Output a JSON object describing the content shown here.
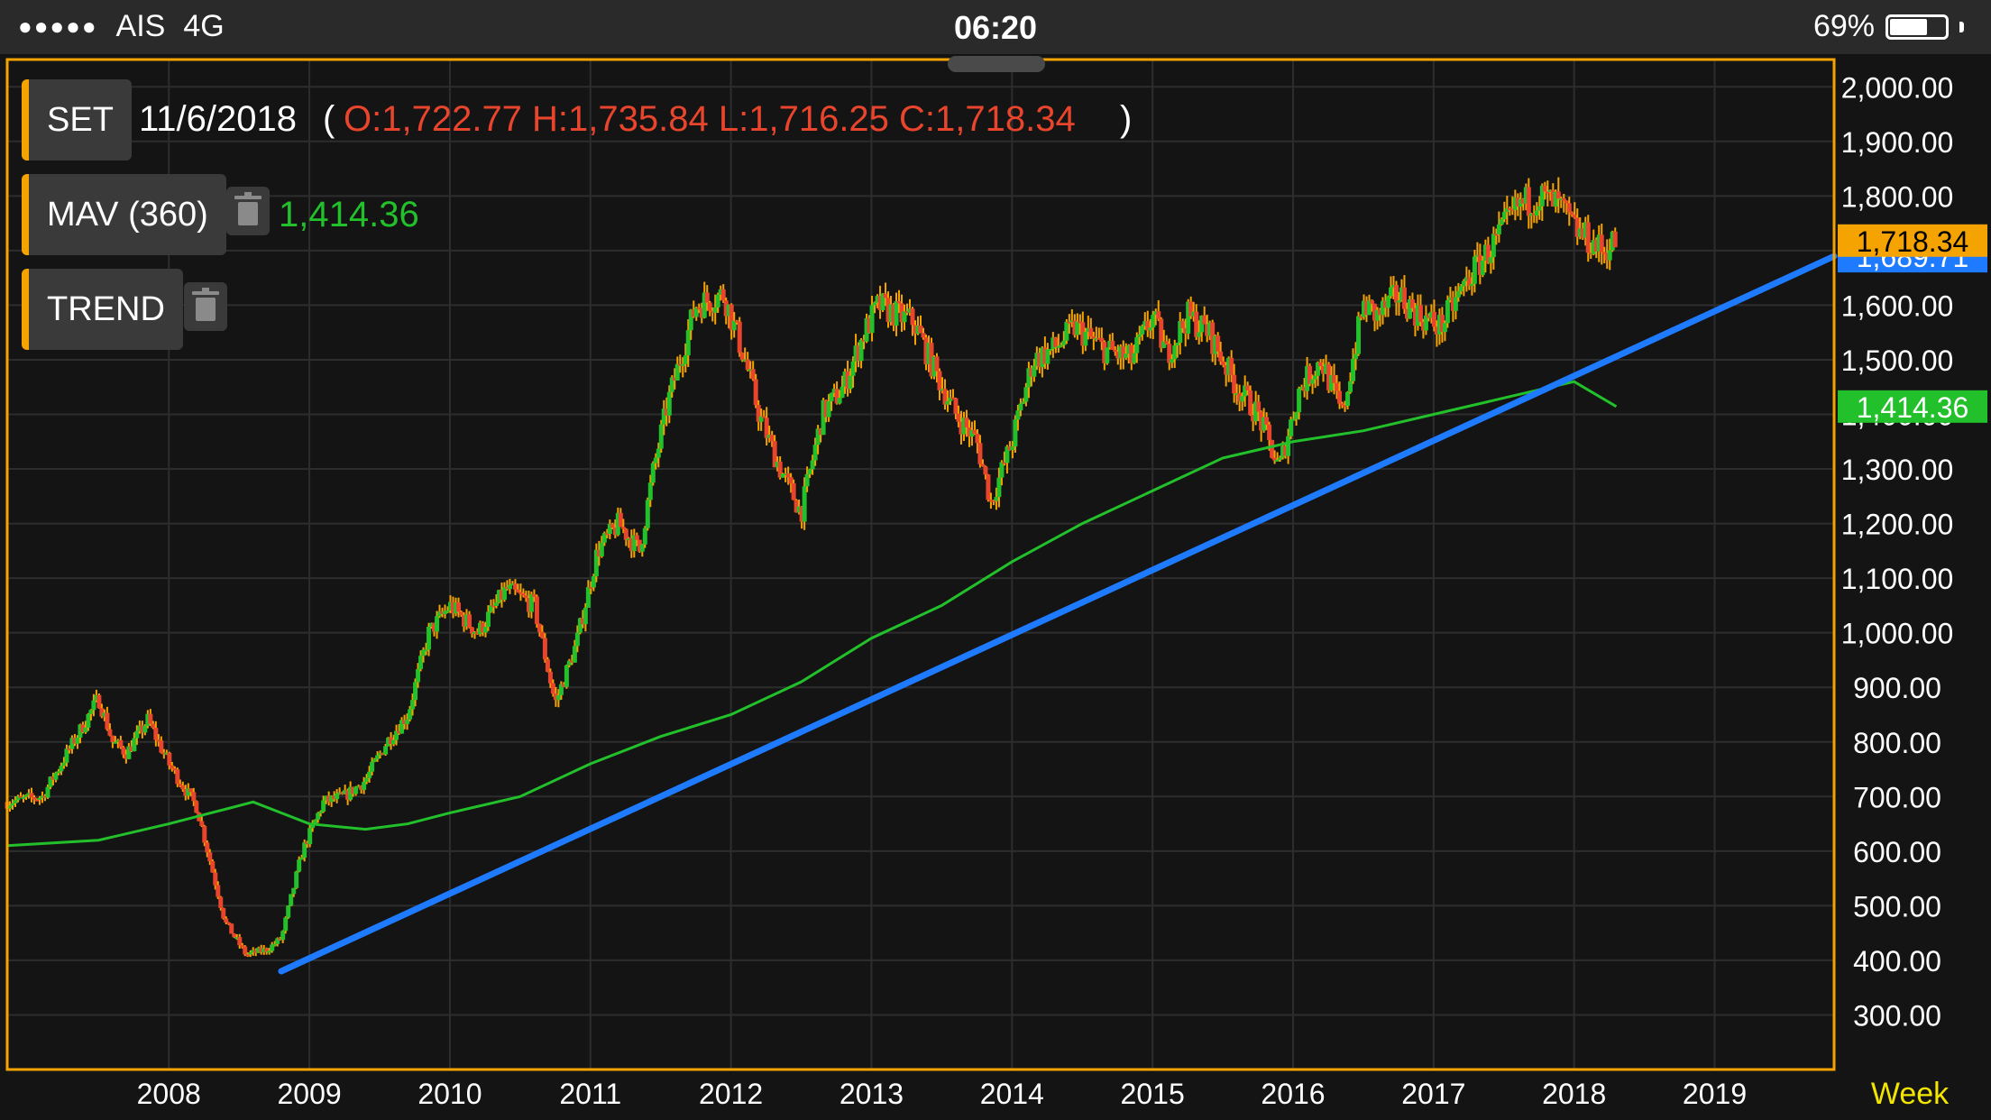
{
  "status_bar": {
    "carrier": "AIS",
    "network": "4G",
    "time": "06:20",
    "battery": "69%",
    "battery_level": 0.69
  },
  "legend": {
    "symbol_button": "SET",
    "date": "11/6/2018",
    "ohlc_open_paren": "(",
    "ohlc": "O:1,722.77 H:1,735.84 L:1,716.25 C:1,718.34",
    "ohlc_close_paren": ")",
    "mav_button": "MAV (360)",
    "mav_value": "1,414.36",
    "trend_button": "TREND"
  },
  "colors": {
    "frame": "#f5a300",
    "up": "#22c02a",
    "down": "#e8452c",
    "wick": "#f5a300",
    "mav": "#22c02a",
    "trend": "#1e7bff",
    "ohlc_text": "#e8452c",
    "grid": "#2d2d2d",
    "axis_text": "#ffffff",
    "interval": "#f2e600"
  },
  "chart_data": {
    "type": "line",
    "subtype": "candlestick",
    "interval_label": "Week",
    "grid": true,
    "ylim": [
      200,
      2050
    ],
    "xlim": [
      2006.85,
      2019.85
    ],
    "y_ticks": [
      "300.00",
      "400.00",
      "500.00",
      "600.00",
      "700.00",
      "800.00",
      "900.00",
      "1,000.00",
      "1,100.00",
      "1,200.00",
      "1,300.00",
      "1,400.00",
      "1,500.00",
      "1,600.00",
      "1,700.00",
      "1,800.00",
      "1,900.00",
      "2,000.00"
    ],
    "y_tick_values": [
      300,
      400,
      500,
      600,
      700,
      800,
      900,
      1000,
      1100,
      1200,
      1300,
      1400,
      1500,
      1600,
      1700,
      1800,
      1900,
      2000
    ],
    "x_ticks": [
      "2008",
      "2009",
      "2010",
      "2011",
      "2012",
      "2013",
      "2014",
      "2015",
      "2016",
      "2017",
      "2018",
      "2019"
    ],
    "x_tick_values": [
      2008,
      2009,
      2010,
      2011,
      2012,
      2013,
      2014,
      2015,
      2016,
      2017,
      2018,
      2019
    ],
    "price_anchors": {
      "x": [
        2006.85,
        2007.1,
        2007.3,
        2007.5,
        2007.6,
        2007.7,
        2007.85,
        2008.0,
        2008.2,
        2008.4,
        2008.55,
        2008.7,
        2008.8,
        2008.95,
        2009.1,
        2009.25,
        2009.4,
        2009.55,
        2009.7,
        2009.85,
        2010.0,
        2010.2,
        2010.4,
        2010.6,
        2010.75,
        2010.9,
        2011.05,
        2011.2,
        2011.35,
        2011.45,
        2011.55,
        2011.75,
        2011.95,
        2012.1,
        2012.2,
        2012.35,
        2012.5,
        2012.65,
        2012.8,
        2012.95,
        2013.05,
        2013.2,
        2013.3,
        2013.45,
        2013.6,
        2013.75,
        2013.85,
        2014.0,
        2014.15,
        2014.3,
        2014.45,
        2014.65,
        2014.85,
        2015.0,
        2015.1,
        2015.25,
        2015.4,
        2015.6,
        2015.75,
        2015.9,
        2016.05,
        2016.2,
        2016.35,
        2016.5,
        2016.6,
        2016.75,
        2016.9,
        2017.05,
        2017.25,
        2017.45,
        2017.6,
        2017.75,
        2017.9,
        2018.0,
        2018.1,
        2018.2,
        2018.3
      ],
      "close": [
        690,
        700,
        790,
        880,
        800,
        780,
        840,
        760,
        680,
        470,
        410,
        420,
        440,
        600,
        690,
        700,
        730,
        800,
        850,
        1000,
        1050,
        1000,
        1080,
        1050,
        870,
        980,
        1150,
        1200,
        1150,
        1300,
        1420,
        1600,
        1620,
        1500,
        1400,
        1300,
        1220,
        1400,
        1450,
        1550,
        1600,
        1580,
        1570,
        1480,
        1400,
        1350,
        1240,
        1350,
        1500,
        1520,
        1560,
        1520,
        1500,
        1580,
        1510,
        1580,
        1550,
        1450,
        1400,
        1300,
        1450,
        1500,
        1400,
        1600,
        1580,
        1620,
        1580,
        1560,
        1650,
        1720,
        1780,
        1800,
        1780,
        1740,
        1720,
        1700,
        1718.34
      ]
    },
    "mav": {
      "label": "MAV (360)",
      "x": [
        2006.85,
        2007.5,
        2008.0,
        2008.3,
        2008.6,
        2009.0,
        2009.4,
        2009.7,
        2010.0,
        2010.5,
        2011.0,
        2011.5,
        2012.0,
        2012.5,
        2013.0,
        2013.5,
        2014.0,
        2014.5,
        2015.0,
        2015.5,
        2016.0,
        2016.5,
        2017.0,
        2017.5,
        2018.0,
        2018.3
      ],
      "values": [
        610,
        620,
        650,
        670,
        690,
        650,
        640,
        650,
        670,
        700,
        760,
        810,
        850,
        910,
        990,
        1050,
        1130,
        1200,
        1260,
        1320,
        1350,
        1370,
        1400,
        1430,
        1460,
        1414.36
      ]
    },
    "trend": {
      "label": "TREND",
      "x": [
        2008.8,
        2019.85
      ],
      "values": [
        380,
        1689.71
      ]
    },
    "price_labels": [
      {
        "text": "1,718.34",
        "value": 1718.34
      },
      {
        "text": "1,689.71",
        "value": 1689.71
      },
      {
        "text": "1,414.36",
        "value": 1414.36
      }
    ]
  }
}
